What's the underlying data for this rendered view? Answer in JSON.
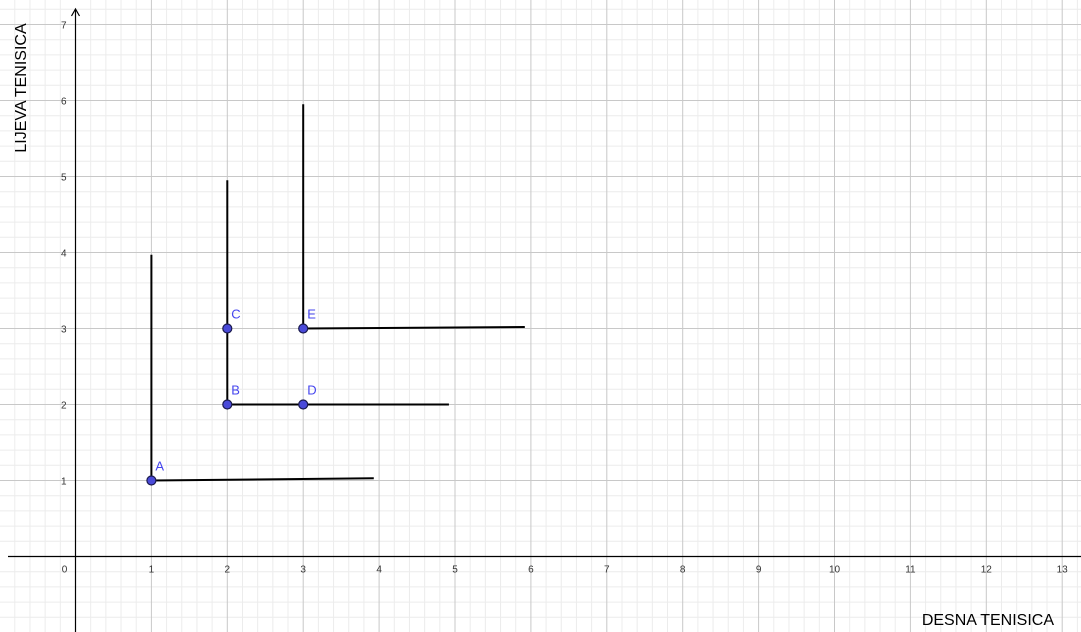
{
  "chart_data": {
    "type": "scatter",
    "xlabel": "DESNA TENISICA",
    "ylabel": "LIJEVA TENISICA",
    "xlim": [
      -0.85,
      13.3
    ],
    "ylim": [
      -1.0,
      7.3
    ],
    "grid": true,
    "minor_grid": true,
    "x_ticks": [
      0,
      1,
      2,
      3,
      4,
      5,
      6,
      7,
      8,
      9,
      10,
      11,
      12,
      13
    ],
    "y_ticks": [
      1,
      2,
      3,
      4,
      5,
      6,
      7
    ],
    "points": [
      {
        "label": "A",
        "x": 1,
        "y": 1
      },
      {
        "label": "B",
        "x": 2,
        "y": 2
      },
      {
        "label": "C",
        "x": 2,
        "y": 3
      },
      {
        "label": "D",
        "x": 3,
        "y": 2
      },
      {
        "label": "E",
        "x": 3,
        "y": 3
      }
    ],
    "segments": [
      {
        "x1": 1,
        "y1": 1,
        "x2": 1,
        "y2": 3.97
      },
      {
        "x1": 1,
        "y1": 1,
        "x2": 3.93,
        "y2": 1.03
      },
      {
        "x1": 2,
        "y1": 2,
        "x2": 2,
        "y2": 4.95
      },
      {
        "x1": 2,
        "y1": 2,
        "x2": 4.92,
        "y2": 2
      },
      {
        "x1": 3,
        "y1": 3,
        "x2": 3,
        "y2": 5.95
      },
      {
        "x1": 3,
        "y1": 3,
        "x2": 5.92,
        "y2": 3.02
      }
    ],
    "colors": {
      "point_fill": "#4a4ad9",
      "point_stroke": "#1a1a4d",
      "point_label": "#4444ee",
      "segment": "#000000",
      "axis": "#000000",
      "major_grid": "#c8c8c8",
      "minor_grid": "#ececec",
      "tick_label": "#333333"
    }
  }
}
